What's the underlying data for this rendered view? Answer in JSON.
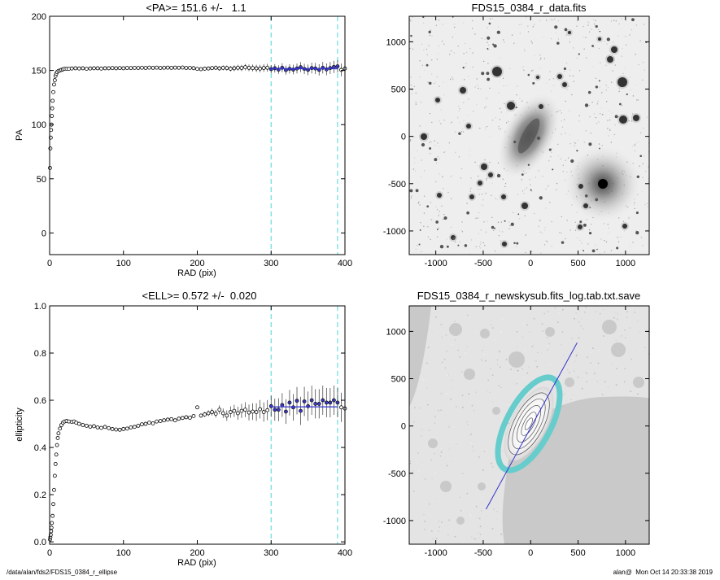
{
  "footer": {
    "left": "/data/alan/fds2/FDS15_0384_r_ellipse",
    "right": "alan@  Mon Oct 14 20:33:38 2019"
  },
  "colors": {
    "points": "#000000",
    "fit": "#3333cc",
    "cut": "#66dddd",
    "image_bg": "#eeeeee",
    "mask": "#c9c9c9"
  },
  "chart_data": [
    {
      "type": "scatter",
      "panel": "pa-profile",
      "title": "<PA>= 151.6 +/-   1.1",
      "xlabel": "RAD (pix)",
      "ylabel": "PA",
      "xlim": [
        0,
        400
      ],
      "ylim": [
        -20,
        200
      ],
      "xticks": [
        0,
        100,
        200,
        300,
        400
      ],
      "yticks": [
        0,
        50,
        100,
        150,
        200
      ],
      "mean": 151.6,
      "cut_lines": [
        300,
        390
      ],
      "fit_range": [
        300,
        390
      ],
      "series": [
        {
          "points": [
            [
              0.5,
              60
            ],
            [
              1,
              78
            ],
            [
              1.5,
              88
            ],
            [
              2,
              95
            ],
            [
              2.5,
              100
            ],
            [
              3,
              108
            ],
            [
              3.5,
              115
            ],
            [
              4,
              122
            ],
            [
              5,
              130
            ],
            [
              6,
              137
            ],
            [
              7,
              141
            ],
            [
              8,
              145
            ],
            [
              9,
              147
            ],
            [
              10,
              148.5
            ],
            [
              12,
              149.5
            ],
            [
              14,
              150
            ],
            [
              16,
              150.5
            ],
            [
              18,
              151
            ],
            [
              20,
              151.5
            ],
            [
              23,
              151.5
            ],
            [
              26,
              151.5
            ],
            [
              30,
              151.8
            ],
            [
              35,
              152
            ],
            [
              40,
              151.8
            ],
            [
              45,
              152
            ],
            [
              50,
              151.5
            ],
            [
              55,
              151.8
            ],
            [
              60,
              152
            ],
            [
              65,
              152
            ],
            [
              70,
              151.7
            ],
            [
              75,
              152
            ],
            [
              80,
              152
            ],
            [
              85,
              152.2
            ],
            [
              90,
              152
            ],
            [
              95,
              152.2
            ],
            [
              100,
              152
            ],
            [
              105,
              152.3
            ],
            [
              110,
              152.2
            ],
            [
              115,
              152.4
            ],
            [
              120,
              152.3
            ],
            [
              125,
              152.5
            ],
            [
              130,
              152.3
            ],
            [
              135,
              152.6
            ],
            [
              140,
              152.4
            ],
            [
              145,
              152.6
            ],
            [
              150,
              152.3
            ],
            [
              155,
              152.5
            ],
            [
              160,
              152.6
            ],
            [
              165,
              152.4
            ],
            [
              170,
              152.6
            ],
            [
              175,
              152.5
            ],
            [
              180,
              152.7
            ],
            [
              185,
              152.3
            ],
            [
              190,
              152.4
            ],
            [
              195,
              152.1
            ],
            [
              200,
              151.4
            ],
            [
              205,
              151.2
            ],
            [
              210,
              151.6
            ],
            [
              215,
              151.8
            ],
            [
              220,
              152.2
            ],
            [
              225,
              152.5
            ],
            [
              230,
              151.9
            ],
            [
              235,
              152.4
            ],
            [
              240,
              152.2
            ],
            [
              245,
              151.6
            ],
            [
              250,
              152
            ],
            [
              255,
              152.5
            ],
            [
              260,
              152.3
            ],
            [
              265,
              153
            ],
            [
              270,
              152.4
            ],
            [
              275,
              152.2
            ],
            [
              280,
              151.9
            ],
            [
              285,
              151.7
            ],
            [
              290,
              152.3
            ],
            [
              295,
              152.5
            ],
            [
              300,
              151.2
            ],
            [
              305,
              152
            ],
            [
              310,
              150.8
            ],
            [
              315,
              152.5
            ],
            [
              320,
              150.3
            ],
            [
              325,
              151.5
            ],
            [
              330,
              150.8
            ],
            [
              335,
              151.8
            ],
            [
              340,
              153
            ],
            [
              345,
              151.4
            ],
            [
              350,
              150.5
            ],
            [
              355,
              152.2
            ],
            [
              360,
              151.8
            ],
            [
              365,
              150.5
            ],
            [
              370,
              152.5
            ],
            [
              375,
              151
            ],
            [
              380,
              152.2
            ],
            [
              385,
              153.2
            ],
            [
              390,
              153.8
            ],
            [
              395,
              150.5
            ],
            [
              400,
              151.8
            ]
          ]
        }
      ]
    },
    {
      "type": "image",
      "panel": "data-image",
      "title": "FDS15_0384_r_data.fits",
      "xlim": [
        -1280,
        1250
      ],
      "ylim": [
        -1250,
        1270
      ],
      "xticks": [
        -1000,
        -500,
        0,
        500,
        1000
      ],
      "yticks": [
        -1000,
        -500,
        0,
        500,
        1000
      ]
    },
    {
      "type": "scatter",
      "panel": "ell-profile",
      "title": "<ELL>= 0.572 +/-  0.020",
      "xlabel": "RAD (pix)",
      "ylabel": "ellipticity",
      "xlim": [
        0,
        400
      ],
      "ylim": [
        -0.01,
        1.0
      ],
      "xticks": [
        0,
        100,
        200,
        300,
        400
      ],
      "yticks": [
        0.0,
        0.2,
        0.4,
        0.6,
        0.8,
        1.0
      ],
      "yticklabels": [
        "0.0",
        "0.2",
        "0.4",
        "0.6",
        "0.8",
        "1.0"
      ],
      "mean": 0.572,
      "cut_lines": [
        300,
        390
      ],
      "fit_range": [
        300,
        390
      ],
      "series": [
        {
          "points": [
            [
              0.5,
              0.01
            ],
            [
              1,
              0.02
            ],
            [
              1.5,
              0.03
            ],
            [
              2,
              0.045
            ],
            [
              2.5,
              0.06
            ],
            [
              3,
              0.08
            ],
            [
              4,
              0.11
            ],
            [
              5,
              0.16
            ],
            [
              6,
              0.22
            ],
            [
              7,
              0.28
            ],
            [
              8,
              0.33
            ],
            [
              9,
              0.37
            ],
            [
              10,
              0.41
            ],
            [
              11,
              0.44
            ],
            [
              12,
              0.46
            ],
            [
              14,
              0.48
            ],
            [
              16,
              0.495
            ],
            [
              18,
              0.505
            ],
            [
              20,
              0.51
            ],
            [
              23,
              0.512
            ],
            [
              26,
              0.51
            ],
            [
              30,
              0.508
            ],
            [
              33,
              0.51
            ],
            [
              36,
              0.505
            ],
            [
              40,
              0.5
            ],
            [
              45,
              0.495
            ],
            [
              50,
              0.492
            ],
            [
              55,
              0.488
            ],
            [
              60,
              0.49
            ],
            [
              65,
              0.485
            ],
            [
              70,
              0.483
            ],
            [
              75,
              0.487
            ],
            [
              80,
              0.482
            ],
            [
              85,
              0.478
            ],
            [
              90,
              0.476
            ],
            [
              95,
              0.475
            ],
            [
              100,
              0.478
            ],
            [
              105,
              0.48
            ],
            [
              110,
              0.485
            ],
            [
              115,
              0.487
            ],
            [
              120,
              0.492
            ],
            [
              125,
              0.498
            ],
            [
              130,
              0.5
            ],
            [
              135,
              0.505
            ],
            [
              140,
              0.502
            ],
            [
              145,
              0.51
            ],
            [
              150,
              0.512
            ],
            [
              155,
              0.515
            ],
            [
              160,
              0.518
            ],
            [
              165,
              0.52
            ],
            [
              170,
              0.515
            ],
            [
              175,
              0.522
            ],
            [
              180,
              0.525
            ],
            [
              185,
              0.528
            ],
            [
              190,
              0.526
            ],
            [
              195,
              0.533
            ],
            [
              200,
              0.57
            ],
            [
              205,
              0.535
            ],
            [
              210,
              0.54
            ],
            [
              215,
              0.545
            ],
            [
              220,
              0.55
            ],
            [
              225,
              0.543
            ],
            [
              230,
              0.56
            ],
            [
              235,
              0.545
            ],
            [
              240,
              0.535
            ],
            [
              245,
              0.55
            ],
            [
              250,
              0.555
            ],
            [
              255,
              0.545
            ],
            [
              260,
              0.555
            ],
            [
              265,
              0.56
            ],
            [
              270,
              0.548
            ],
            [
              275,
              0.552
            ],
            [
              280,
              0.55
            ],
            [
              285,
              0.562
            ],
            [
              290,
              0.55
            ],
            [
              295,
              0.558
            ],
            [
              300,
              0.575
            ],
            [
              305,
              0.56
            ],
            [
              310,
              0.56
            ],
            [
              315,
              0.58
            ],
            [
              320,
              0.552
            ],
            [
              325,
              0.59
            ],
            [
              330,
              0.57
            ],
            [
              335,
              0.598
            ],
            [
              340,
              0.555
            ],
            [
              345,
              0.595
            ],
            [
              350,
              0.575
            ],
            [
              355,
              0.6
            ],
            [
              360,
              0.585
            ],
            [
              365,
              0.585
            ],
            [
              370,
              0.6
            ],
            [
              375,
              0.59
            ],
            [
              380,
              0.59
            ],
            [
              385,
              0.6
            ],
            [
              390,
              0.59
            ],
            [
              395,
              0.57
            ],
            [
              400,
              0.565
            ]
          ]
        }
      ]
    },
    {
      "type": "image",
      "panel": "model-image",
      "title": "FDS15_0384_r_newskysub.fits_log.tab.txt.save",
      "xlim": [
        -1280,
        1250
      ],
      "ylim": [
        -1250,
        1270
      ],
      "xticks": [
        -1000,
        -500,
        0,
        500,
        1000
      ],
      "yticks": [
        -1000,
        -500,
        0,
        500,
        1000
      ],
      "position_angle_deg": 151.6,
      "major_axis_line": [
        [
          -470,
          -880
        ],
        [
          490,
          880
        ]
      ]
    }
  ]
}
